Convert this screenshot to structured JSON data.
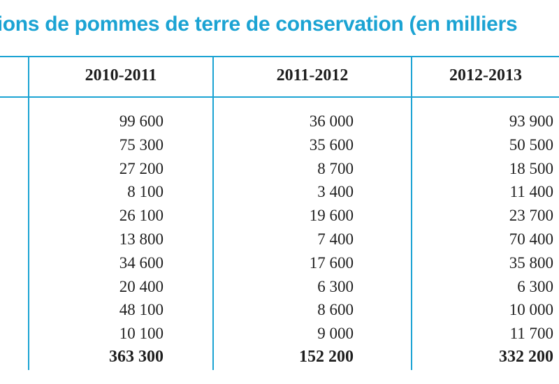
{
  "title": "tions de pommes de terre de conservation (en milliers",
  "headers": [
    "2010-2011",
    "2011-2012",
    "2012-2013"
  ],
  "columns": [
    [
      "99 600",
      "75 300",
      "27 200",
      "8 100",
      "26 100",
      "13 800",
      "34 600",
      "20 400",
      "48 100",
      "10 100",
      "363 300"
    ],
    [
      "36 000",
      "35 600",
      "8 700",
      "3 400",
      "19 600",
      "7 400",
      "17 600",
      "6 300",
      "8 600",
      "9 000",
      "152 200"
    ],
    [
      "93 900",
      "50 500",
      "18 500",
      "11 400",
      "23 700",
      "70 400",
      "35 800",
      "6 300",
      "10 000",
      "11 700",
      "332 200"
    ]
  ],
  "colors": {
    "accent": "#1ba3d3",
    "text": "#1e1e1e"
  }
}
